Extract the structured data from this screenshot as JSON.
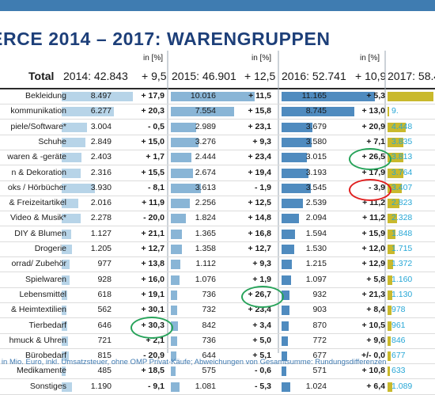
{
  "title": "ERCE 2014 – 2017: WARENGRUPPEN",
  "unit_label": "in [%]",
  "total": {
    "label": "Total",
    "y2014": "2014: 42.843",
    "c2015": "+ 9,5",
    "y2015": "2015: 46.901",
    "c2016": "+ 12,5",
    "y2016": "2016: 52.741",
    "c2017": "+ 10,9",
    "y2017": "2017: 58.4"
  },
  "colors": {
    "top_bar": "#3f7cb1",
    "title": "#1d3f79",
    "bar_2014": "#b7d4e8",
    "bar_2015": "#89b5d6",
    "bar_2016": "#4f8bbf",
    "bar_2017": "#c9b92c",
    "value_2017": "#27a7d6",
    "highlight_green": "#27a35a",
    "highlight_red": "#e02020",
    "footnote": "#3f7ab1"
  },
  "chart_data": {
    "type": "table",
    "years": [
      "2014",
      "2015",
      "2016",
      "2017"
    ],
    "rows": [
      {
        "category": "Bekleidung",
        "v2014": "8.497",
        "c2014": "+ 17,9",
        "v2015": "10.016",
        "c2015": "+ 11,5",
        "v2016": "11.165",
        "c2016": "+ 5,3",
        "v2017": ""
      },
      {
        "category": "kommunikation",
        "v2014": "6.277",
        "c2014": "+ 20,3",
        "v2015": "7.554",
        "c2015": "+ 15,8",
        "v2016": "8.745",
        "c2016": "+ 13,0",
        "v2017": "9."
      },
      {
        "category": "piele/Software*",
        "v2014": "3.004",
        "c2014": "- 0,5",
        "v2015": "2.989",
        "c2015": "+ 23,1",
        "v2016": "3.679",
        "c2016": "+ 20,9",
        "v2017": "4.448"
      },
      {
        "category": "Schuhe",
        "v2014": "2.849",
        "c2014": "+ 15,0",
        "v2015": "3.276",
        "c2015": "+ 9,3",
        "v2016": "3.580",
        "c2016": "+ 7,1",
        "v2017": "3.835"
      },
      {
        "category": "waren & -geräte",
        "v2014": "2.403",
        "c2014": "+ 1,7",
        "v2015": "2.444",
        "c2015": "+ 23,4",
        "v2016": "3.015",
        "c2016": "+ 26,5",
        "v2017": "3.813"
      },
      {
        "category": "n & Dekoration",
        "v2014": "2.316",
        "c2014": "+ 15,5",
        "v2015": "2.674",
        "c2015": "+ 19,4",
        "v2016": "3.193",
        "c2016": "+ 17,9",
        "v2017": "3.764"
      },
      {
        "category": "oks / Hörbücher",
        "v2014": "3.930",
        "c2014": "- 8,1",
        "v2015": "3.613",
        "c2015": "- 1,9",
        "v2016": "3.545",
        "c2016": "- 3,9",
        "v2017": "3.407"
      },
      {
        "category": "& Freizeitartikel",
        "v2014": "2.016",
        "c2014": "+ 11,9",
        "v2015": "2.256",
        "c2015": "+ 12,5",
        "v2016": "2.539",
        "c2016": "+ 11,2",
        "v2017": "2.823"
      },
      {
        "category": "Video & Musik*",
        "v2014": "2.278",
        "c2014": "- 20,0",
        "v2015": "1.824",
        "c2015": "+ 14,8",
        "v2016": "2.094",
        "c2016": "+ 11,2",
        "v2017": "2.328"
      },
      {
        "category": "DIY & Blumen",
        "v2014": "1.127",
        "c2014": "+ 21,1",
        "v2015": "1.365",
        "c2015": "+ 16,8",
        "v2016": "1.594",
        "c2016": "+ 15,9",
        "v2017": "1.848"
      },
      {
        "category": "Drogerie",
        "v2014": "1.205",
        "c2014": "+ 12,7",
        "v2015": "1.358",
        "c2015": "+ 12,7",
        "v2016": "1.530",
        "c2016": "+ 12,0",
        "v2017": "1.715"
      },
      {
        "category": "orrad/ Zubehör",
        "v2014": "977",
        "c2014": "+ 13,8",
        "v2015": "1.112",
        "c2015": "+ 9,3",
        "v2016": "1.215",
        "c2016": "+ 12,9",
        "v2017": "1.372"
      },
      {
        "category": "Spielwaren",
        "v2014": "928",
        "c2014": "+ 16,0",
        "v2015": "1.076",
        "c2015": "+ 1,9",
        "v2016": "1.097",
        "c2016": "+ 5,8",
        "v2017": "1.160"
      },
      {
        "category": "Lebensmittel",
        "v2014": "618",
        "c2014": "+ 19,1",
        "v2015": "736",
        "c2015": "+ 26,7",
        "v2016": "932",
        "c2016": "+ 21,3",
        "v2017": "1.130"
      },
      {
        "category": "& Heimtextilien",
        "v2014": "562",
        "c2014": "+ 30,1",
        "v2015": "732",
        "c2015": "+ 23,4",
        "v2016": "903",
        "c2016": "+ 8,4",
        "v2017": "978"
      },
      {
        "category": "Tierbedarf",
        "v2014": "646",
        "c2014": "+ 30,3",
        "v2015": "842",
        "c2015": "+ 3,4",
        "v2016": "870",
        "c2016": "+ 10,5",
        "v2017": "961"
      },
      {
        "category": "hmuck & Uhren",
        "v2014": "721",
        "c2014": "+ 2,1",
        "v2015": "736",
        "c2015": "+ 5,0",
        "v2016": "772",
        "c2016": "+ 9,6",
        "v2017": "846"
      },
      {
        "category": "Bürobedarf",
        "v2014": "815",
        "c2014": "- 20,9",
        "v2015": "644",
        "c2015": "+ 5,1",
        "v2016": "677",
        "c2016": "+/- 0,0",
        "v2017": "677"
      },
      {
        "category": "Medikamente",
        "v2014": "485",
        "c2014": "+ 18,5",
        "v2015": "575",
        "c2015": "- 0,6",
        "v2016": "571",
        "c2016": "+ 10,8",
        "v2017": "633"
      },
      {
        "category": "Sonstiges",
        "v2014": "1.190",
        "c2014": "- 9,1",
        "v2015": "1.081",
        "c2015": "- 5,3",
        "v2016": "1.024",
        "c2016": "+ 6,4",
        "v2017": "1.089"
      }
    ],
    "highlights": [
      {
        "row": "waren & -geräte",
        "column": "c2016",
        "color": "green"
      },
      {
        "row": "oks / Hörbücher",
        "column": "c2016",
        "color": "red"
      },
      {
        "row": "Lebensmittel",
        "column": "c2015",
        "color": "green"
      },
      {
        "row": "Tierbedarf",
        "column": "c2014",
        "color": "green"
      }
    ]
  },
  "footnote": "n in Mio. Euro, inkl. Umsatzsteuer, ohne OMP Privat-Käufe; Abweichungen von Gesamtsumme: Rundungsdifferenzen"
}
